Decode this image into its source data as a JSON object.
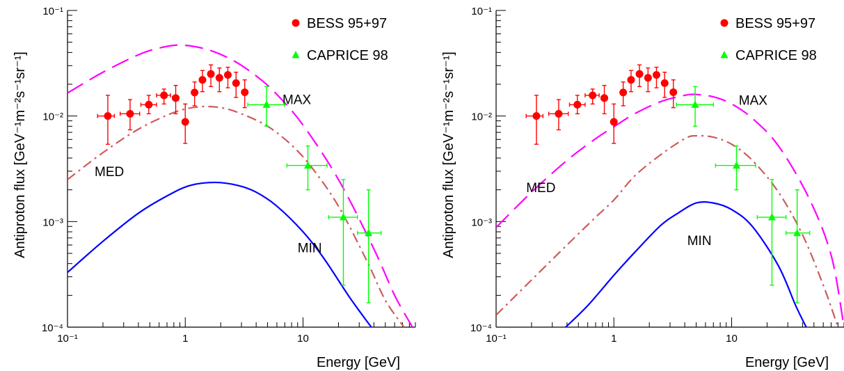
{
  "chart_data": [
    {
      "type": "line",
      "xlabel": "Energy [GeV]",
      "ylabel": "Antiproton  flux [GeV⁻¹m⁻²s⁻¹sr⁻¹]",
      "xscale": "log",
      "yscale": "log",
      "xlim": [
        0.1,
        90
      ],
      "ylim": [
        0.0001,
        0.1
      ],
      "grid": false,
      "legend_position": "top-right",
      "x_tick_labels": [
        "10⁻¹",
        "1",
        "10"
      ],
      "y_tick_labels": [
        "10⁻⁴",
        "10⁻³",
        "10⁻²",
        "10⁻¹"
      ],
      "legend": [
        {
          "label": "BESS 95+97",
          "marker": "circle",
          "color": "#ff0000"
        },
        {
          "label": "CAPRICE 98",
          "marker": "triangle",
          "color": "#00ff00"
        }
      ],
      "series": [
        {
          "label": "MAX",
          "style": "dashed",
          "color": "#ff00ff",
          "x": [
            0.1,
            0.2,
            0.4,
            0.6,
            0.9,
            1.5,
            2.5,
            4,
            6,
            10,
            20,
            40,
            60,
            85
          ],
          "y": [
            0.0165,
            0.026,
            0.038,
            0.044,
            0.047,
            0.043,
            0.034,
            0.024,
            0.016,
            0.0082,
            0.0025,
            0.00055,
            0.0002,
            0.0001
          ]
        },
        {
          "label": "MED",
          "style": "dash-dot",
          "color": "#cd5c5c",
          "x": [
            0.1,
            0.2,
            0.4,
            0.8,
            1.3,
            2,
            3,
            5,
            8,
            12,
            20,
            35,
            50,
            72
          ],
          "y": [
            0.0025,
            0.0045,
            0.0075,
            0.0108,
            0.0122,
            0.012,
            0.0105,
            0.008,
            0.0053,
            0.0032,
            0.0014,
            0.00042,
            0.00018,
            0.0001
          ]
        },
        {
          "label": "MIN",
          "style": "solid",
          "color": "#0000ff",
          "x": [
            0.1,
            0.2,
            0.4,
            0.7,
            1.1,
            1.8,
            2.8,
            4,
            6,
            10,
            15,
            25,
            38
          ],
          "y": [
            0.00033,
            0.00065,
            0.0012,
            0.00175,
            0.0022,
            0.00235,
            0.0022,
            0.0019,
            0.0014,
            0.0008,
            0.00045,
            0.00019,
            0.0001
          ]
        }
      ],
      "curve_labels": [
        {
          "text": "MAX",
          "x": 6.7,
          "y": 0.013
        },
        {
          "text": "MED",
          "x": 0.17,
          "y": 0.0027
        },
        {
          "text": "MIN",
          "x": 9,
          "y": 0.00051
        }
      ],
      "data_series": [
        {
          "name": "BESS 95+97",
          "marker": "circle",
          "color": "#ff0000",
          "points": [
            {
              "x": 0.22,
              "y": 0.01,
              "xlo": 0.18,
              "xhi": 0.25,
              "ylo": 0.0054,
              "yhi": 0.0157
            },
            {
              "x": 0.34,
              "y": 0.0105,
              "xlo": 0.28,
              "xhi": 0.41,
              "ylo": 0.0074,
              "yhi": 0.0143
            },
            {
              "x": 0.49,
              "y": 0.0128,
              "xlo": 0.42,
              "xhi": 0.57,
              "ylo": 0.0105,
              "yhi": 0.0157
            },
            {
              "x": 0.66,
              "y": 0.0157,
              "xlo": 0.57,
              "xhi": 0.75,
              "ylo": 0.013,
              "yhi": 0.018
            },
            {
              "x": 0.83,
              "y": 0.0148,
              "xlo": 0.78,
              "xhi": 0.88,
              "ylo": 0.0105,
              "yhi": 0.0195
            },
            {
              "x": 1.0,
              "y": 0.0088,
              "xlo": 0.95,
              "xhi": 1.05,
              "ylo": 0.0055,
              "yhi": 0.013
            },
            {
              "x": 1.2,
              "y": 0.0167,
              "xlo": 1.15,
              "xhi": 1.25,
              "ylo": 0.0125,
              "yhi": 0.021
            },
            {
              "x": 1.4,
              "y": 0.022,
              "xlo": 1.35,
              "xhi": 1.45,
              "ylo": 0.017,
              "yhi": 0.027
            },
            {
              "x": 1.65,
              "y": 0.025,
              "xlo": 1.58,
              "xhi": 1.72,
              "ylo": 0.019,
              "yhi": 0.0305
            },
            {
              "x": 1.95,
              "y": 0.023,
              "xlo": 1.88,
              "xhi": 2.02,
              "ylo": 0.017,
              "yhi": 0.0285
            },
            {
              "x": 2.3,
              "y": 0.0245,
              "xlo": 2.22,
              "xhi": 2.38,
              "ylo": 0.0185,
              "yhi": 0.029
            },
            {
              "x": 2.7,
              "y": 0.0205,
              "xlo": 2.62,
              "xhi": 2.78,
              "ylo": 0.015,
              "yhi": 0.026
            },
            {
              "x": 3.2,
              "y": 0.0168,
              "xlo": 3.1,
              "xhi": 3.3,
              "ylo": 0.012,
              "yhi": 0.022
            }
          ]
        },
        {
          "name": "CAPRICE 98",
          "marker": "triangle",
          "color": "#00ff00",
          "points": [
            {
              "x": 4.9,
              "y": 0.0128,
              "xlo": 3.4,
              "xhi": 7.0,
              "ylo": 0.008,
              "yhi": 0.019
            },
            {
              "x": 11,
              "y": 0.0034,
              "xlo": 7.3,
              "xhi": 16.0,
              "ylo": 0.002,
              "yhi": 0.0052
            },
            {
              "x": 22,
              "y": 0.0011,
              "xlo": 16.5,
              "xhi": 29.0,
              "ylo": 0.00025,
              "yhi": 0.0025
            },
            {
              "x": 36,
              "y": 0.00078,
              "xlo": 29.0,
              "xhi": 46.0,
              "ylo": 0.00017,
              "yhi": 0.002
            }
          ]
        }
      ]
    },
    {
      "type": "line",
      "xlabel": "Energy [GeV]",
      "ylabel": "Antiproton  flux [GeV⁻¹m⁻²s⁻¹sr⁻¹]",
      "xscale": "log",
      "yscale": "log",
      "xlim": [
        0.1,
        90
      ],
      "ylim": [
        0.0001,
        0.1
      ],
      "grid": false,
      "legend_position": "top-right",
      "x_tick_labels": [
        "10⁻¹",
        "1",
        "10"
      ],
      "y_tick_labels": [
        "10⁻⁴",
        "10⁻³",
        "10⁻²",
        "10⁻¹"
      ],
      "legend": [
        {
          "label": "BESS 95+97",
          "marker": "circle",
          "color": "#ff0000"
        },
        {
          "label": "CAPRICE 98",
          "marker": "triangle",
          "color": "#00ff00"
        }
      ],
      "series": [
        {
          "label": "MAX",
          "style": "dashed",
          "color": "#ff00ff",
          "x": [
            0.1,
            0.2,
            0.4,
            0.7,
            1,
            1.5,
            2.5,
            4,
            5,
            7,
            10,
            15,
            25,
            45,
            70,
            90
          ],
          "y": [
            0.00088,
            0.0019,
            0.0038,
            0.0061,
            0.0079,
            0.0105,
            0.0137,
            0.0157,
            0.016,
            0.0152,
            0.013,
            0.0095,
            0.0052,
            0.0017,
            0.00048,
            0.0001
          ]
        },
        {
          "label": "MED",
          "style": "dash-dot",
          "color": "#cd5c5c",
          "x": [
            0.1,
            0.2,
            0.4,
            0.7,
            1,
            1.5,
            2.5,
            4,
            5,
            7,
            10,
            15,
            25,
            40,
            60,
            80
          ],
          "y": [
            0.00013,
            0.00028,
            0.0006,
            0.0011,
            0.0016,
            0.0027,
            0.0043,
            0.0061,
            0.0065,
            0.0063,
            0.0054,
            0.0038,
            0.0019,
            0.00075,
            0.00025,
            0.0001
          ]
        },
        {
          "label": "MIN",
          "style": "solid",
          "color": "#0000ff",
          "x": [
            0.39,
            0.6,
            1,
            1.5,
            2.5,
            3.5,
            5,
            7,
            10,
            15,
            25,
            35,
            43
          ],
          "y": [
            0.0001,
            0.00016,
            0.00031,
            0.00051,
            0.00092,
            0.0012,
            0.0015,
            0.0015,
            0.0013,
            0.0009,
            0.00038,
            0.00016,
            0.0001
          ]
        }
      ],
      "curve_labels": [
        {
          "text": "MAX",
          "x": 11.5,
          "y": 0.0128
        },
        {
          "text": "MED",
          "x": 0.18,
          "y": 0.0019
        },
        {
          "text": "MIN",
          "x": 4.2,
          "y": 0.0006
        }
      ],
      "data_series": [
        {
          "name": "BESS 95+97",
          "marker": "circle",
          "color": "#ff0000",
          "points": [
            {
              "x": 0.22,
              "y": 0.01,
              "xlo": 0.18,
              "xhi": 0.25,
              "ylo": 0.0054,
              "yhi": 0.0157
            },
            {
              "x": 0.34,
              "y": 0.0105,
              "xlo": 0.28,
              "xhi": 0.41,
              "ylo": 0.0074,
              "yhi": 0.0143
            },
            {
              "x": 0.49,
              "y": 0.0128,
              "xlo": 0.42,
              "xhi": 0.57,
              "ylo": 0.0105,
              "yhi": 0.0157
            },
            {
              "x": 0.66,
              "y": 0.0157,
              "xlo": 0.57,
              "xhi": 0.75,
              "ylo": 0.013,
              "yhi": 0.018
            },
            {
              "x": 0.83,
              "y": 0.0148,
              "xlo": 0.78,
              "xhi": 0.88,
              "ylo": 0.0105,
              "yhi": 0.0195
            },
            {
              "x": 1.0,
              "y": 0.0088,
              "xlo": 0.95,
              "xhi": 1.05,
              "ylo": 0.0055,
              "yhi": 0.013
            },
            {
              "x": 1.2,
              "y": 0.0167,
              "xlo": 1.15,
              "xhi": 1.25,
              "ylo": 0.0125,
              "yhi": 0.021
            },
            {
              "x": 1.4,
              "y": 0.022,
              "xlo": 1.35,
              "xhi": 1.45,
              "ylo": 0.017,
              "yhi": 0.027
            },
            {
              "x": 1.65,
              "y": 0.025,
              "xlo": 1.58,
              "xhi": 1.72,
              "ylo": 0.019,
              "yhi": 0.0305
            },
            {
              "x": 1.95,
              "y": 0.023,
              "xlo": 1.88,
              "xhi": 2.02,
              "ylo": 0.017,
              "yhi": 0.0285
            },
            {
              "x": 2.3,
              "y": 0.0245,
              "xlo": 2.22,
              "xhi": 2.38,
              "ylo": 0.0185,
              "yhi": 0.029
            },
            {
              "x": 2.7,
              "y": 0.0205,
              "xlo": 2.62,
              "xhi": 2.78,
              "ylo": 0.015,
              "yhi": 0.026
            },
            {
              "x": 3.2,
              "y": 0.0168,
              "xlo": 3.1,
              "xhi": 3.3,
              "ylo": 0.012,
              "yhi": 0.022
            }
          ]
        },
        {
          "name": "CAPRICE 98",
          "marker": "triangle",
          "color": "#00ff00",
          "points": [
            {
              "x": 4.9,
              "y": 0.0128,
              "xlo": 3.4,
              "xhi": 7.0,
              "ylo": 0.008,
              "yhi": 0.019
            },
            {
              "x": 11,
              "y": 0.0034,
              "xlo": 7.3,
              "xhi": 16.0,
              "ylo": 0.002,
              "yhi": 0.0052
            },
            {
              "x": 22,
              "y": 0.0011,
              "xlo": 16.5,
              "xhi": 29.0,
              "ylo": 0.00025,
              "yhi": 0.0025
            },
            {
              "x": 36,
              "y": 0.00078,
              "xlo": 29.0,
              "xhi": 46.0,
              "ylo": 0.00017,
              "yhi": 0.002
            }
          ]
        }
      ]
    }
  ]
}
